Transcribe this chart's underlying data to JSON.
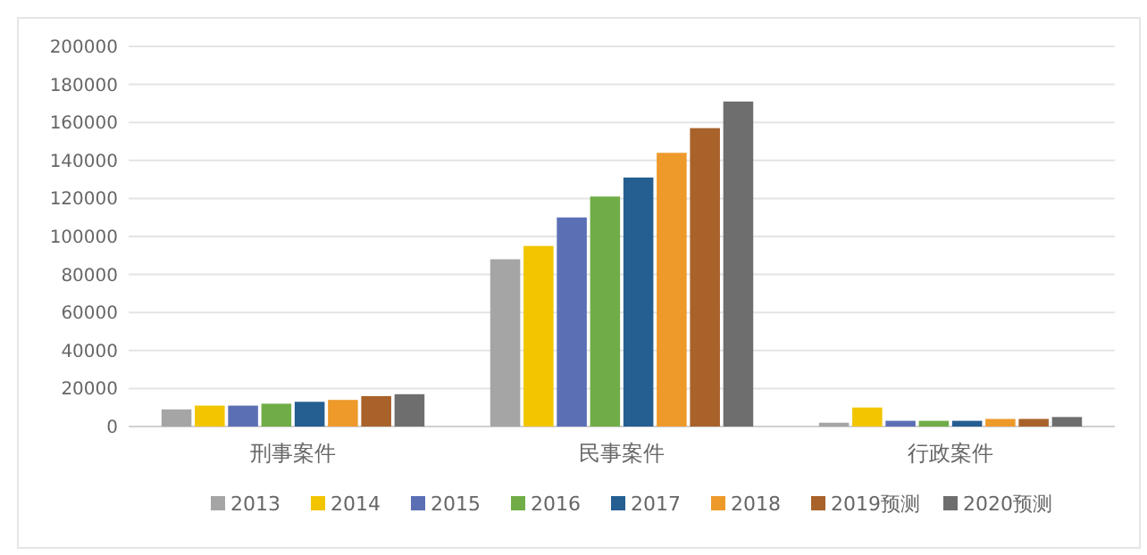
{
  "chart_data": {
    "type": "bar",
    "categories": [
      "刑事案件",
      "民事案件",
      "行政案件"
    ],
    "series": [
      {
        "name": "2013",
        "color": "#a5a5a5",
        "values": [
          9000,
          88000,
          2000
        ]
      },
      {
        "name": "2014",
        "color": "#f2c500",
        "values": [
          11000,
          95000,
          10000
        ]
      },
      {
        "name": "2015",
        "color": "#5b6fb5",
        "values": [
          11000,
          110000,
          3000
        ]
      },
      {
        "name": "2016",
        "color": "#70ad47",
        "values": [
          12000,
          121000,
          3000
        ]
      },
      {
        "name": "2017",
        "color": "#255e91",
        "values": [
          13000,
          131000,
          3000
        ]
      },
      {
        "name": "2018",
        "color": "#ed9a2b",
        "values": [
          14000,
          144000,
          4000
        ]
      },
      {
        "name": "2019预测",
        "color": "#a8622a",
        "values": [
          16000,
          157000,
          4000
        ]
      },
      {
        "name": "2020预测",
        "color": "#6e6e6e",
        "values": [
          17000,
          171000,
          5000
        ]
      }
    ],
    "ylim": [
      0,
      200000
    ],
    "yticks": [
      0,
      20000,
      40000,
      60000,
      80000,
      100000,
      120000,
      140000,
      160000,
      180000,
      200000
    ],
    "grid": "y",
    "legend": "bottom"
  }
}
